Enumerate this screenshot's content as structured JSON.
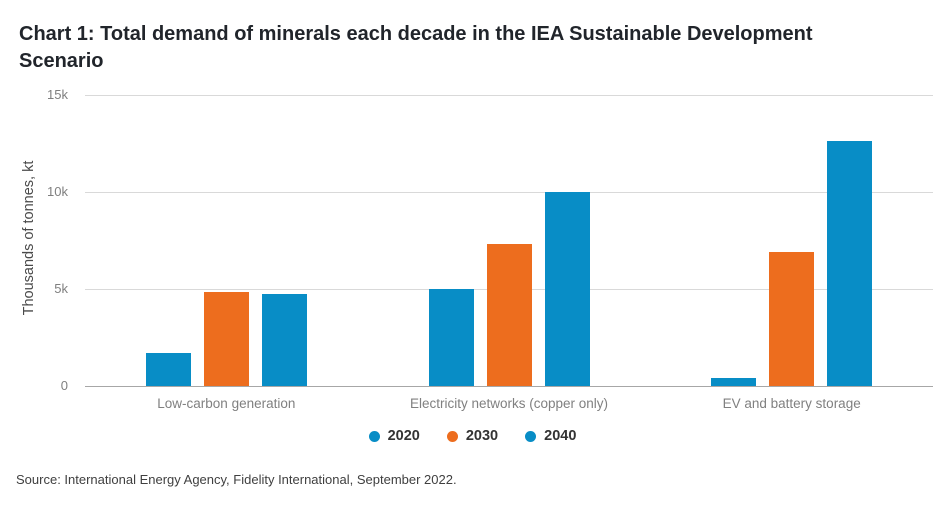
{
  "title": {
    "line1": "Chart 1: Total demand of minerals each decade in the IEA Sustainable Development",
    "line2": "Scenario"
  },
  "source": "Source: International Energy Agency, Fidelity International, September 2022.",
  "colors": {
    "series_2020": "#088dc6",
    "series_2030": "#ed6d1e",
    "series_2040": "#088dc6",
    "gridline": "#d9d9d9",
    "baseline": "#a7a7a7",
    "title_text": "#21252b",
    "axis_text": "#7f7f7f",
    "category_text": "#808080",
    "legend_text": "#333333",
    "source_text": "#404040"
  },
  "chart_data": {
    "type": "bar",
    "title": "Chart 1: Total demand of minerals each decade in the IEA Sustainable Development Scenario",
    "xlabel": "",
    "ylabel": "Thousands of tonnes, kt",
    "categories": [
      "Low-carbon generation",
      "Electricity networks (copper only)",
      "EV and battery storage"
    ],
    "series": [
      {
        "name": "2020",
        "color": "#088dc6",
        "values": [
          1700,
          4990,
          400
        ]
      },
      {
        "name": "2030",
        "color": "#ed6d1e",
        "values": [
          4830,
          7300,
          6900
        ]
      },
      {
        "name": "2040",
        "color": "#088dc6",
        "values": [
          4740,
          10000,
          12650
        ]
      }
    ],
    "ylim": [
      0,
      15000
    ],
    "yticks": [
      {
        "label": "0",
        "value": 0
      },
      {
        "label": "5k",
        "value": 5000
      },
      {
        "label": "10k",
        "value": 10000
      },
      {
        "label": "15k",
        "value": 15000
      }
    ],
    "grid": "horizontal",
    "legend_position": "bottom-center",
    "legend": [
      {
        "label": "2020",
        "color": "#088dc6"
      },
      {
        "label": "2030",
        "color": "#ed6d1e"
      },
      {
        "label": "2040",
        "color": "#088dc6"
      }
    ]
  }
}
